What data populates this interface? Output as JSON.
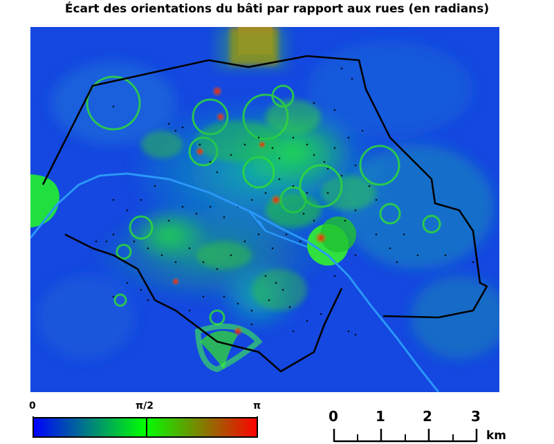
{
  "title": "Écart des orientations du bâti par rapport aux rues (en radians)",
  "colorbar": {
    "ticks": [
      "0",
      "π/2",
      "π"
    ],
    "colors": [
      "#0000ff",
      "#00ff00",
      "#ff0000"
    ]
  },
  "scalebar": {
    "ticks": [
      "0",
      "1",
      "2",
      "3"
    ],
    "unit": "km"
  },
  "map": {
    "background": "#1040e0",
    "boundary_color": "#000000",
    "river_color": "#2090ff"
  }
}
